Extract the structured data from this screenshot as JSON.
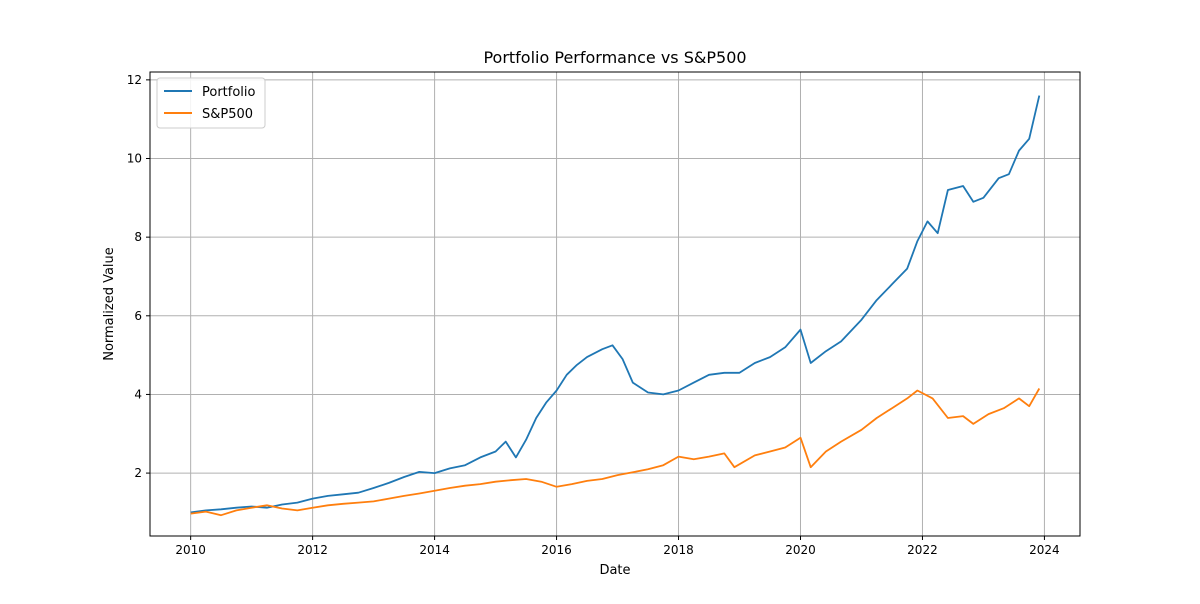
{
  "chart_data": {
    "type": "line",
    "title": "Portfolio Performance vs S&P500",
    "xlabel": "Date",
    "ylabel": "Normalized Value",
    "xlim": [
      "2009-05-01",
      "2024-08-01"
    ],
    "ylim": [
      0.4,
      12.2
    ],
    "x_ticks": [
      "2010",
      "2012",
      "2014",
      "2016",
      "2018",
      "2020",
      "2022",
      "2024"
    ],
    "y_ticks": [
      2,
      4,
      6,
      8,
      10,
      12
    ],
    "grid": true,
    "legend": "top-left",
    "series": [
      {
        "name": "Portfolio",
        "color": "#1f77b4",
        "points": [
          [
            "2010-01-01",
            1.0
          ],
          [
            "2010-04-01",
            1.05
          ],
          [
            "2010-07-01",
            1.08
          ],
          [
            "2010-10-01",
            1.12
          ],
          [
            "2011-01-01",
            1.15
          ],
          [
            "2011-04-01",
            1.12
          ],
          [
            "2011-07-01",
            1.2
          ],
          [
            "2011-10-01",
            1.25
          ],
          [
            "2012-01-01",
            1.35
          ],
          [
            "2012-04-01",
            1.42
          ],
          [
            "2012-07-01",
            1.46
          ],
          [
            "2012-10-01",
            1.5
          ],
          [
            "2013-01-01",
            1.62
          ],
          [
            "2013-04-01",
            1.75
          ],
          [
            "2013-07-01",
            1.9
          ],
          [
            "2013-10-01",
            2.03
          ],
          [
            "2014-01-01",
            2.0
          ],
          [
            "2014-04-01",
            2.12
          ],
          [
            "2014-07-01",
            2.2
          ],
          [
            "2014-10-01",
            2.4
          ],
          [
            "2015-01-01",
            2.55
          ],
          [
            "2015-03-01",
            2.8
          ],
          [
            "2015-05-01",
            2.4
          ],
          [
            "2015-07-01",
            2.85
          ],
          [
            "2015-09-01",
            3.4
          ],
          [
            "2015-11-01",
            3.8
          ],
          [
            "2016-01-01",
            4.1
          ],
          [
            "2016-03-01",
            4.5
          ],
          [
            "2016-05-01",
            4.75
          ],
          [
            "2016-07-01",
            4.95
          ],
          [
            "2016-10-01",
            5.15
          ],
          [
            "2016-12-01",
            5.25
          ],
          [
            "2017-02-01",
            4.9
          ],
          [
            "2017-04-01",
            4.3
          ],
          [
            "2017-07-01",
            4.05
          ],
          [
            "2017-10-01",
            4.0
          ],
          [
            "2018-01-01",
            4.1
          ],
          [
            "2018-04-01",
            4.3
          ],
          [
            "2018-07-01",
            4.5
          ],
          [
            "2018-10-01",
            4.55
          ],
          [
            "2019-01-01",
            4.55
          ],
          [
            "2019-04-01",
            4.8
          ],
          [
            "2019-07-01",
            4.95
          ],
          [
            "2019-10-01",
            5.2
          ],
          [
            "2020-01-01",
            5.65
          ],
          [
            "2020-03-01",
            4.8
          ],
          [
            "2020-06-01",
            5.1
          ],
          [
            "2020-09-01",
            5.35
          ],
          [
            "2021-01-01",
            5.9
          ],
          [
            "2021-04-01",
            6.4
          ],
          [
            "2021-07-01",
            6.8
          ],
          [
            "2021-10-01",
            7.2
          ],
          [
            "2021-12-01",
            7.9
          ],
          [
            "2022-02-01",
            8.4
          ],
          [
            "2022-04-01",
            8.1
          ],
          [
            "2022-06-01",
            9.2
          ],
          [
            "2022-09-01",
            9.3
          ],
          [
            "2022-11-01",
            8.9
          ],
          [
            "2023-01-01",
            9.0
          ],
          [
            "2023-04-01",
            9.5
          ],
          [
            "2023-06-01",
            9.6
          ],
          [
            "2023-08-01",
            10.2
          ],
          [
            "2023-10-01",
            10.5
          ],
          [
            "2023-12-01",
            11.6
          ]
        ]
      },
      {
        "name": "S&P500",
        "color": "#ff7f0e",
        "points": [
          [
            "2010-01-01",
            0.97
          ],
          [
            "2010-04-01",
            1.02
          ],
          [
            "2010-07-01",
            0.93
          ],
          [
            "2010-10-01",
            1.05
          ],
          [
            "2011-01-01",
            1.12
          ],
          [
            "2011-04-01",
            1.18
          ],
          [
            "2011-07-01",
            1.1
          ],
          [
            "2011-10-01",
            1.05
          ],
          [
            "2012-01-01",
            1.12
          ],
          [
            "2012-04-01",
            1.18
          ],
          [
            "2012-07-01",
            1.22
          ],
          [
            "2012-10-01",
            1.25
          ],
          [
            "2013-01-01",
            1.28
          ],
          [
            "2013-04-01",
            1.35
          ],
          [
            "2013-07-01",
            1.42
          ],
          [
            "2013-10-01",
            1.48
          ],
          [
            "2014-01-01",
            1.55
          ],
          [
            "2014-04-01",
            1.62
          ],
          [
            "2014-07-01",
            1.68
          ],
          [
            "2014-10-01",
            1.72
          ],
          [
            "2015-01-01",
            1.78
          ],
          [
            "2015-04-01",
            1.82
          ],
          [
            "2015-07-01",
            1.85
          ],
          [
            "2015-10-01",
            1.78
          ],
          [
            "2016-01-01",
            1.65
          ],
          [
            "2016-04-01",
            1.72
          ],
          [
            "2016-07-01",
            1.8
          ],
          [
            "2016-10-01",
            1.85
          ],
          [
            "2017-01-01",
            1.95
          ],
          [
            "2017-04-01",
            2.02
          ],
          [
            "2017-07-01",
            2.1
          ],
          [
            "2017-10-01",
            2.2
          ],
          [
            "2018-01-01",
            2.42
          ],
          [
            "2018-04-01",
            2.35
          ],
          [
            "2018-07-01",
            2.42
          ],
          [
            "2018-10-01",
            2.5
          ],
          [
            "2018-12-01",
            2.15
          ],
          [
            "2019-04-01",
            2.45
          ],
          [
            "2019-07-01",
            2.55
          ],
          [
            "2019-10-01",
            2.65
          ],
          [
            "2020-01-01",
            2.9
          ],
          [
            "2020-03-01",
            2.15
          ],
          [
            "2020-06-01",
            2.55
          ],
          [
            "2020-09-01",
            2.8
          ],
          [
            "2021-01-01",
            3.1
          ],
          [
            "2021-04-01",
            3.4
          ],
          [
            "2021-07-01",
            3.65
          ],
          [
            "2021-10-01",
            3.9
          ],
          [
            "2021-12-01",
            4.1
          ],
          [
            "2022-03-01",
            3.9
          ],
          [
            "2022-06-01",
            3.4
          ],
          [
            "2022-09-01",
            3.45
          ],
          [
            "2022-11-01",
            3.25
          ],
          [
            "2023-02-01",
            3.5
          ],
          [
            "2023-05-01",
            3.65
          ],
          [
            "2023-08-01",
            3.9
          ],
          [
            "2023-10-01",
            3.7
          ],
          [
            "2023-12-01",
            4.15
          ]
        ]
      }
    ]
  }
}
